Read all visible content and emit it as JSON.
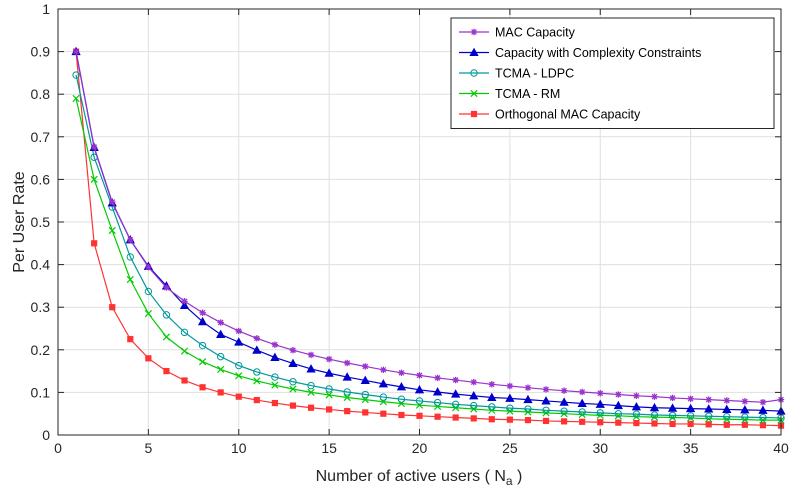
{
  "chart_data": {
    "type": "line",
    "title": "",
    "xlabel": "Number of active users ( N",
    "xlabel_subscript": "a",
    "xlabel_close": " )",
    "ylabel": "Per User Rate",
    "xlim": [
      0,
      40
    ],
    "ylim": [
      0,
      1
    ],
    "xticks": [
      0,
      5,
      10,
      15,
      20,
      25,
      30,
      35,
      40
    ],
    "xtick_labels": [
      "0",
      "5",
      "10",
      "15",
      "20",
      "25",
      "30",
      "35",
      "40"
    ],
    "yticks": [
      0,
      0.1,
      0.2,
      0.3,
      0.4,
      0.5,
      0.6,
      0.7,
      0.8,
      0.9,
      1
    ],
    "ytick_labels": [
      "0",
      "0.1",
      "0.2",
      "0.3",
      "0.4",
      "0.5",
      "0.6",
      "0.7",
      "0.8",
      "0.9",
      "1"
    ],
    "grid": true,
    "legend_position": "top-right",
    "x": [
      1,
      2,
      3,
      4,
      5,
      6,
      7,
      8,
      9,
      10,
      11,
      12,
      13,
      14,
      15,
      16,
      17,
      18,
      19,
      20,
      21,
      22,
      23,
      24,
      25,
      26,
      27,
      28,
      29,
      30,
      31,
      32,
      33,
      34,
      35,
      36,
      37,
      38,
      39,
      40
    ],
    "series": [
      {
        "name": "MAC Capacity",
        "color": "#9933cc",
        "marker": "star",
        "values": [
          0.9,
          0.676,
          0.547,
          0.458,
          0.394,
          0.346,
          0.314,
          0.287,
          0.264,
          0.244,
          0.227,
          0.212,
          0.199,
          0.188,
          0.178,
          0.169,
          0.161,
          0.153,
          0.146,
          0.14,
          0.134,
          0.129,
          0.124,
          0.119,
          0.115,
          0.111,
          0.107,
          0.104,
          0.101,
          0.098,
          0.095,
          0.092,
          0.09,
          0.087,
          0.085,
          0.083,
          0.081,
          0.079,
          0.077,
          0.083
        ]
      },
      {
        "name": "Capacity  with  Complexity  Constraints",
        "color": "#0000cc",
        "marker": "triangle",
        "values": [
          0.9,
          0.675,
          0.545,
          0.458,
          0.396,
          0.35,
          0.304,
          0.266,
          0.236,
          0.218,
          0.199,
          0.182,
          0.168,
          0.155,
          0.145,
          0.136,
          0.128,
          0.12,
          0.113,
          0.106,
          0.101,
          0.096,
          0.092,
          0.088,
          0.086,
          0.083,
          0.08,
          0.077,
          0.074,
          0.072,
          0.069,
          0.066,
          0.064,
          0.063,
          0.062,
          0.061,
          0.06,
          0.059,
          0.058,
          0.056
        ]
      },
      {
        "name": "TCMA - LDPC",
        "color": "#009999",
        "marker": "circle",
        "values": [
          0.845,
          0.652,
          0.535,
          0.418,
          0.337,
          0.282,
          0.241,
          0.21,
          0.184,
          0.163,
          0.148,
          0.136,
          0.125,
          0.116,
          0.108,
          0.101,
          0.095,
          0.089,
          0.084,
          0.08,
          0.076,
          0.072,
          0.069,
          0.066,
          0.063,
          0.061,
          0.058,
          0.056,
          0.054,
          0.052,
          0.05,
          0.049,
          0.047,
          0.046,
          0.045,
          0.044,
          0.043,
          0.042,
          0.041,
          0.04
        ]
      },
      {
        "name": "TCMA - RM",
        "color": "#00cc00",
        "marker": "x",
        "values": [
          0.79,
          0.6,
          0.48,
          0.365,
          0.285,
          0.23,
          0.197,
          0.172,
          0.154,
          0.139,
          0.127,
          0.117,
          0.108,
          0.1,
          0.094,
          0.088,
          0.083,
          0.078,
          0.074,
          0.07,
          0.067,
          0.064,
          0.061,
          0.058,
          0.056,
          0.054,
          0.052,
          0.05,
          0.048,
          0.046,
          0.045,
          0.043,
          0.042,
          0.041,
          0.04,
          0.038,
          0.037,
          0.036,
          0.035,
          0.035
        ]
      },
      {
        "name": "Orthogonal MAC Capacity",
        "color": "#ff3333",
        "marker": "square",
        "values": [
          0.9,
          0.45,
          0.3,
          0.225,
          0.18,
          0.15,
          0.128,
          0.112,
          0.1,
          0.09,
          0.082,
          0.075,
          0.069,
          0.064,
          0.06,
          0.056,
          0.053,
          0.05,
          0.047,
          0.045,
          0.043,
          0.041,
          0.039,
          0.037,
          0.036,
          0.035,
          0.033,
          0.032,
          0.031,
          0.03,
          0.029,
          0.028,
          0.027,
          0.026,
          0.026,
          0.025,
          0.024,
          0.024,
          0.023,
          0.022
        ]
      }
    ]
  }
}
